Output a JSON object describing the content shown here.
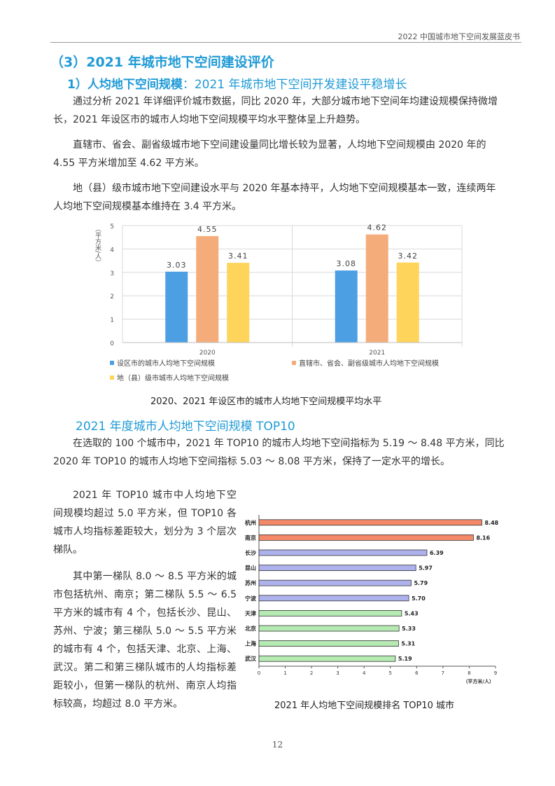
{
  "header": {
    "doc_title": "2022 中国城市地下空间发展蓝皮书"
  },
  "section": {
    "title": "（3）2021 年城市地下空间建设评价",
    "sub_title_bold": "1）人均地下空间规模",
    "sub_title_rest": "：2021 年城市地下空间开发建设平稳增长"
  },
  "paragraphs": [
    "通过分析 2021 年详细评价城市数据，同比 2020 年，大部分城市地下空间年均建设规模保持微增长，2021 年设区市的城市人均地下空间规模平均水平整体呈上升趋势。",
    "直辖市、省会、副省级城市地下空间建设量同比增长较为显著，人均地下空间规模由 2020 年的 4.55 平方米增加至 4.62 平方米。",
    "地（县）级市城市地下空间建设水平与 2020 年基本持平，人均地下空间规模基本一致，连续两年人均地下空间规模基本维持在 3.4 平方米。"
  ],
  "chart1_caption": "2020、2021 年设区市的城市人均地下空间规模平均水平",
  "top10": {
    "heading": "2021 年度城市人均地下空间规模 TOP10",
    "intro": "在选取的 100 个城市中，2021 年 TOP10 的城市人均地下空间指标为 5.19 ～ 8.48 平方米，同比 2020 年 TOP10 的城市人均地下空间指标 5.03 ～ 8.08 平方米，保持了一定水平的增长。",
    "left_paragraphs": [
      "2021 年 TOP10 城市中人均地下空间规模均超过 5.0 平方米，但 TOP10 各城市人均指标差距较大，划分为 3 个层次梯队。",
      "其中第一梯队 8.0 ～ 8.5 平方米的城市包括杭州、南京；第二梯队 5.5 ～ 6.5 平方米的城市有 4 个，包括长沙、昆山、苏州、宁波；第三梯队 5.0 ～ 5.5 平方米的城市有 4 个，包括天津、北京、上海、武汉。第二和第三梯队城市的人均指标差距较小，但第一梯队的杭州、南京人均指标较高，均超过 8.0 平方米。"
    ]
  },
  "chart2_caption": "2021 年人均地下空间规模排名 TOP10 城市",
  "page_number": "12",
  "chart_data": [
    {
      "type": "bar",
      "title": "",
      "ylabel": "（平方米/人）",
      "ylim": [
        0,
        5
      ],
      "yticks": [
        "0",
        "1",
        "2",
        "3",
        "4",
        "5"
      ],
      "categories": [
        "2020",
        "2021"
      ],
      "grid": true,
      "legend_placement": "bottom",
      "series": [
        {
          "name": "设区市的城市人均地下空间规模",
          "values": [
            3.03,
            3.08
          ],
          "labels": [
            "3.03",
            "3.08"
          ],
          "color": "#4d9fe4"
        },
        {
          "name": "直辖市、省会、副省级城市人均地下空间规模",
          "values": [
            4.55,
            4.62
          ],
          "labels": [
            "4.55",
            "4.62"
          ],
          "color": "#f4ad7a"
        },
        {
          "name": "地（县）级市城市人均地下空间规模",
          "values": [
            3.41,
            3.42
          ],
          "labels": [
            "3.41",
            "3.42"
          ],
          "color": "#ffd45a"
        }
      ]
    },
    {
      "type": "bar",
      "orientation": "horizontal",
      "title": "",
      "xlabel": "（平方米/人）",
      "xlim": [
        0,
        9
      ],
      "xticks": [
        "0",
        "1",
        "2",
        "3",
        "4",
        "5",
        "6",
        "7",
        "8",
        "9"
      ],
      "categories": [
        "杭州",
        "南京",
        "长沙",
        "昆山",
        "苏州",
        "宁波",
        "天津",
        "北京",
        "上海",
        "武汉"
      ],
      "values": [
        8.48,
        8.16,
        6.39,
        5.97,
        5.79,
        5.7,
        5.43,
        5.33,
        5.31,
        5.19
      ],
      "labels": [
        "8.48",
        "8.16",
        "6.39",
        "5.97",
        "5.79",
        "5.70",
        "5.43",
        "5.33",
        "5.31",
        "5.19"
      ],
      "tier_colors": [
        "#f4896a",
        "#f4896a",
        "#aeb2ec",
        "#aeb2ec",
        "#aeb2ec",
        "#aeb2ec",
        "#b5eab2",
        "#b5eab2",
        "#b5eab2",
        "#b5eab2"
      ]
    }
  ]
}
